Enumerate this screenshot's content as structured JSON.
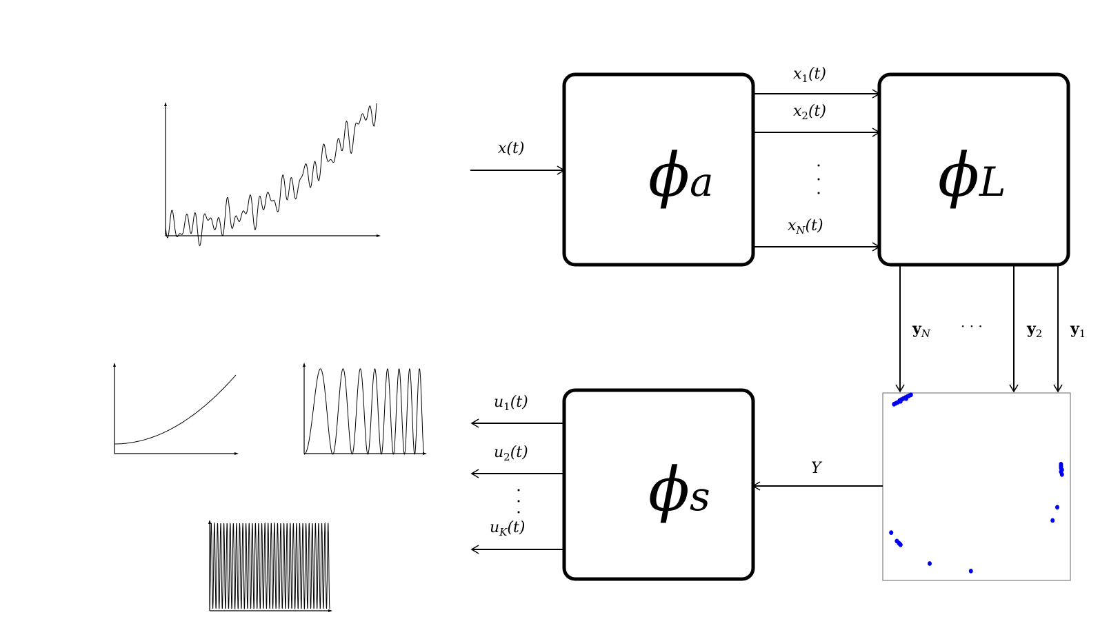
{
  "blocks": {
    "analysis": {
      "symbol": "ϕ",
      "subscript": "a"
    },
    "lifting": {
      "symbol": "ϕ",
      "subscript": "L"
    },
    "synthesis": {
      "symbol": "ϕ",
      "subscript": "s"
    }
  },
  "labels": {
    "input": "x(t)",
    "x1": {
      "base": "x",
      "sub": "1",
      "rest": "(t)"
    },
    "x2": {
      "base": "x",
      "sub": "2",
      "rest": "(t)"
    },
    "xN": {
      "base": "x",
      "sub": "N",
      "rest": "(t)"
    },
    "yN": {
      "base": "y",
      "sub": "N"
    },
    "y2": {
      "base": "y",
      "sub": "2"
    },
    "y1": {
      "base": "y",
      "sub": "1"
    },
    "ydots": "· · ·",
    "Y": "Y",
    "u1": {
      "base": "u",
      "sub": "1",
      "rest": "(t)"
    },
    "u2": {
      "base": "u",
      "sub": "2",
      "rest": "(t)"
    },
    "uK": {
      "base": "u",
      "sub": "K",
      "rest": "(t)"
    }
  },
  "colors": {
    "scatter": "#0000ee",
    "stroke": "#000000"
  },
  "scatter_points": [
    [
      0.06,
      0.06
    ],
    [
      0.07,
      0.055
    ],
    [
      0.08,
      0.05
    ],
    [
      0.09,
      0.04
    ],
    [
      0.1,
      0.035
    ],
    [
      0.11,
      0.03
    ],
    [
      0.12,
      0.025
    ],
    [
      0.13,
      0.02
    ],
    [
      0.14,
      0.015
    ],
    [
      0.15,
      0.01
    ],
    [
      0.095,
      0.045
    ],
    [
      0.125,
      0.03
    ],
    [
      0.95,
      0.38
    ],
    [
      0.95,
      0.39
    ],
    [
      0.95,
      0.4
    ],
    [
      0.955,
      0.41
    ],
    [
      0.95,
      0.42
    ],
    [
      0.955,
      0.435
    ],
    [
      0.93,
      0.61
    ],
    [
      0.905,
      0.68
    ],
    [
      0.045,
      0.745
    ],
    [
      0.075,
      0.79
    ],
    [
      0.085,
      0.8
    ],
    [
      0.095,
      0.81
    ],
    [
      0.09,
      0.805
    ],
    [
      0.25,
      0.91
    ],
    [
      0.47,
      0.95
    ]
  ]
}
